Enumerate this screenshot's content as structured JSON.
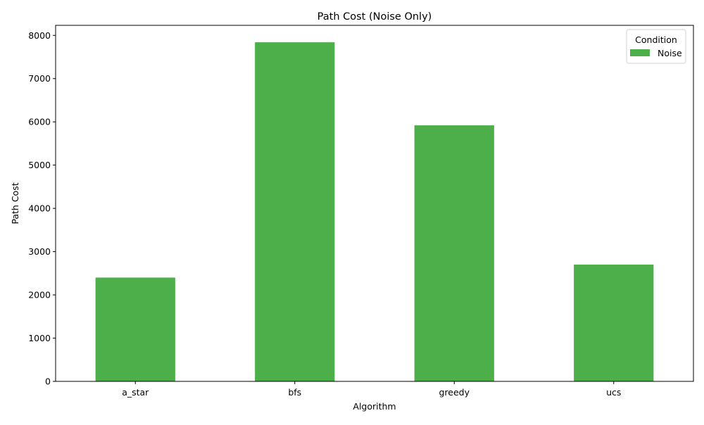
{
  "chart_data": {
    "type": "bar",
    "title": "Path Cost (Noise Only)",
    "xlabel": "Algorithm",
    "ylabel": "Path Cost",
    "categories": [
      "a_star",
      "bfs",
      "greedy",
      "ucs"
    ],
    "series": [
      {
        "name": "Noise",
        "color": "#4daf4a",
        "values": [
          2400,
          7840,
          5920,
          2700
        ]
      }
    ],
    "ylim": [
      0,
      8232
    ],
    "yticks": [
      0,
      1000,
      2000,
      3000,
      4000,
      5000,
      6000,
      7000,
      8000
    ],
    "legend": {
      "title": "Condition",
      "position": "top-right"
    },
    "grid": false
  }
}
